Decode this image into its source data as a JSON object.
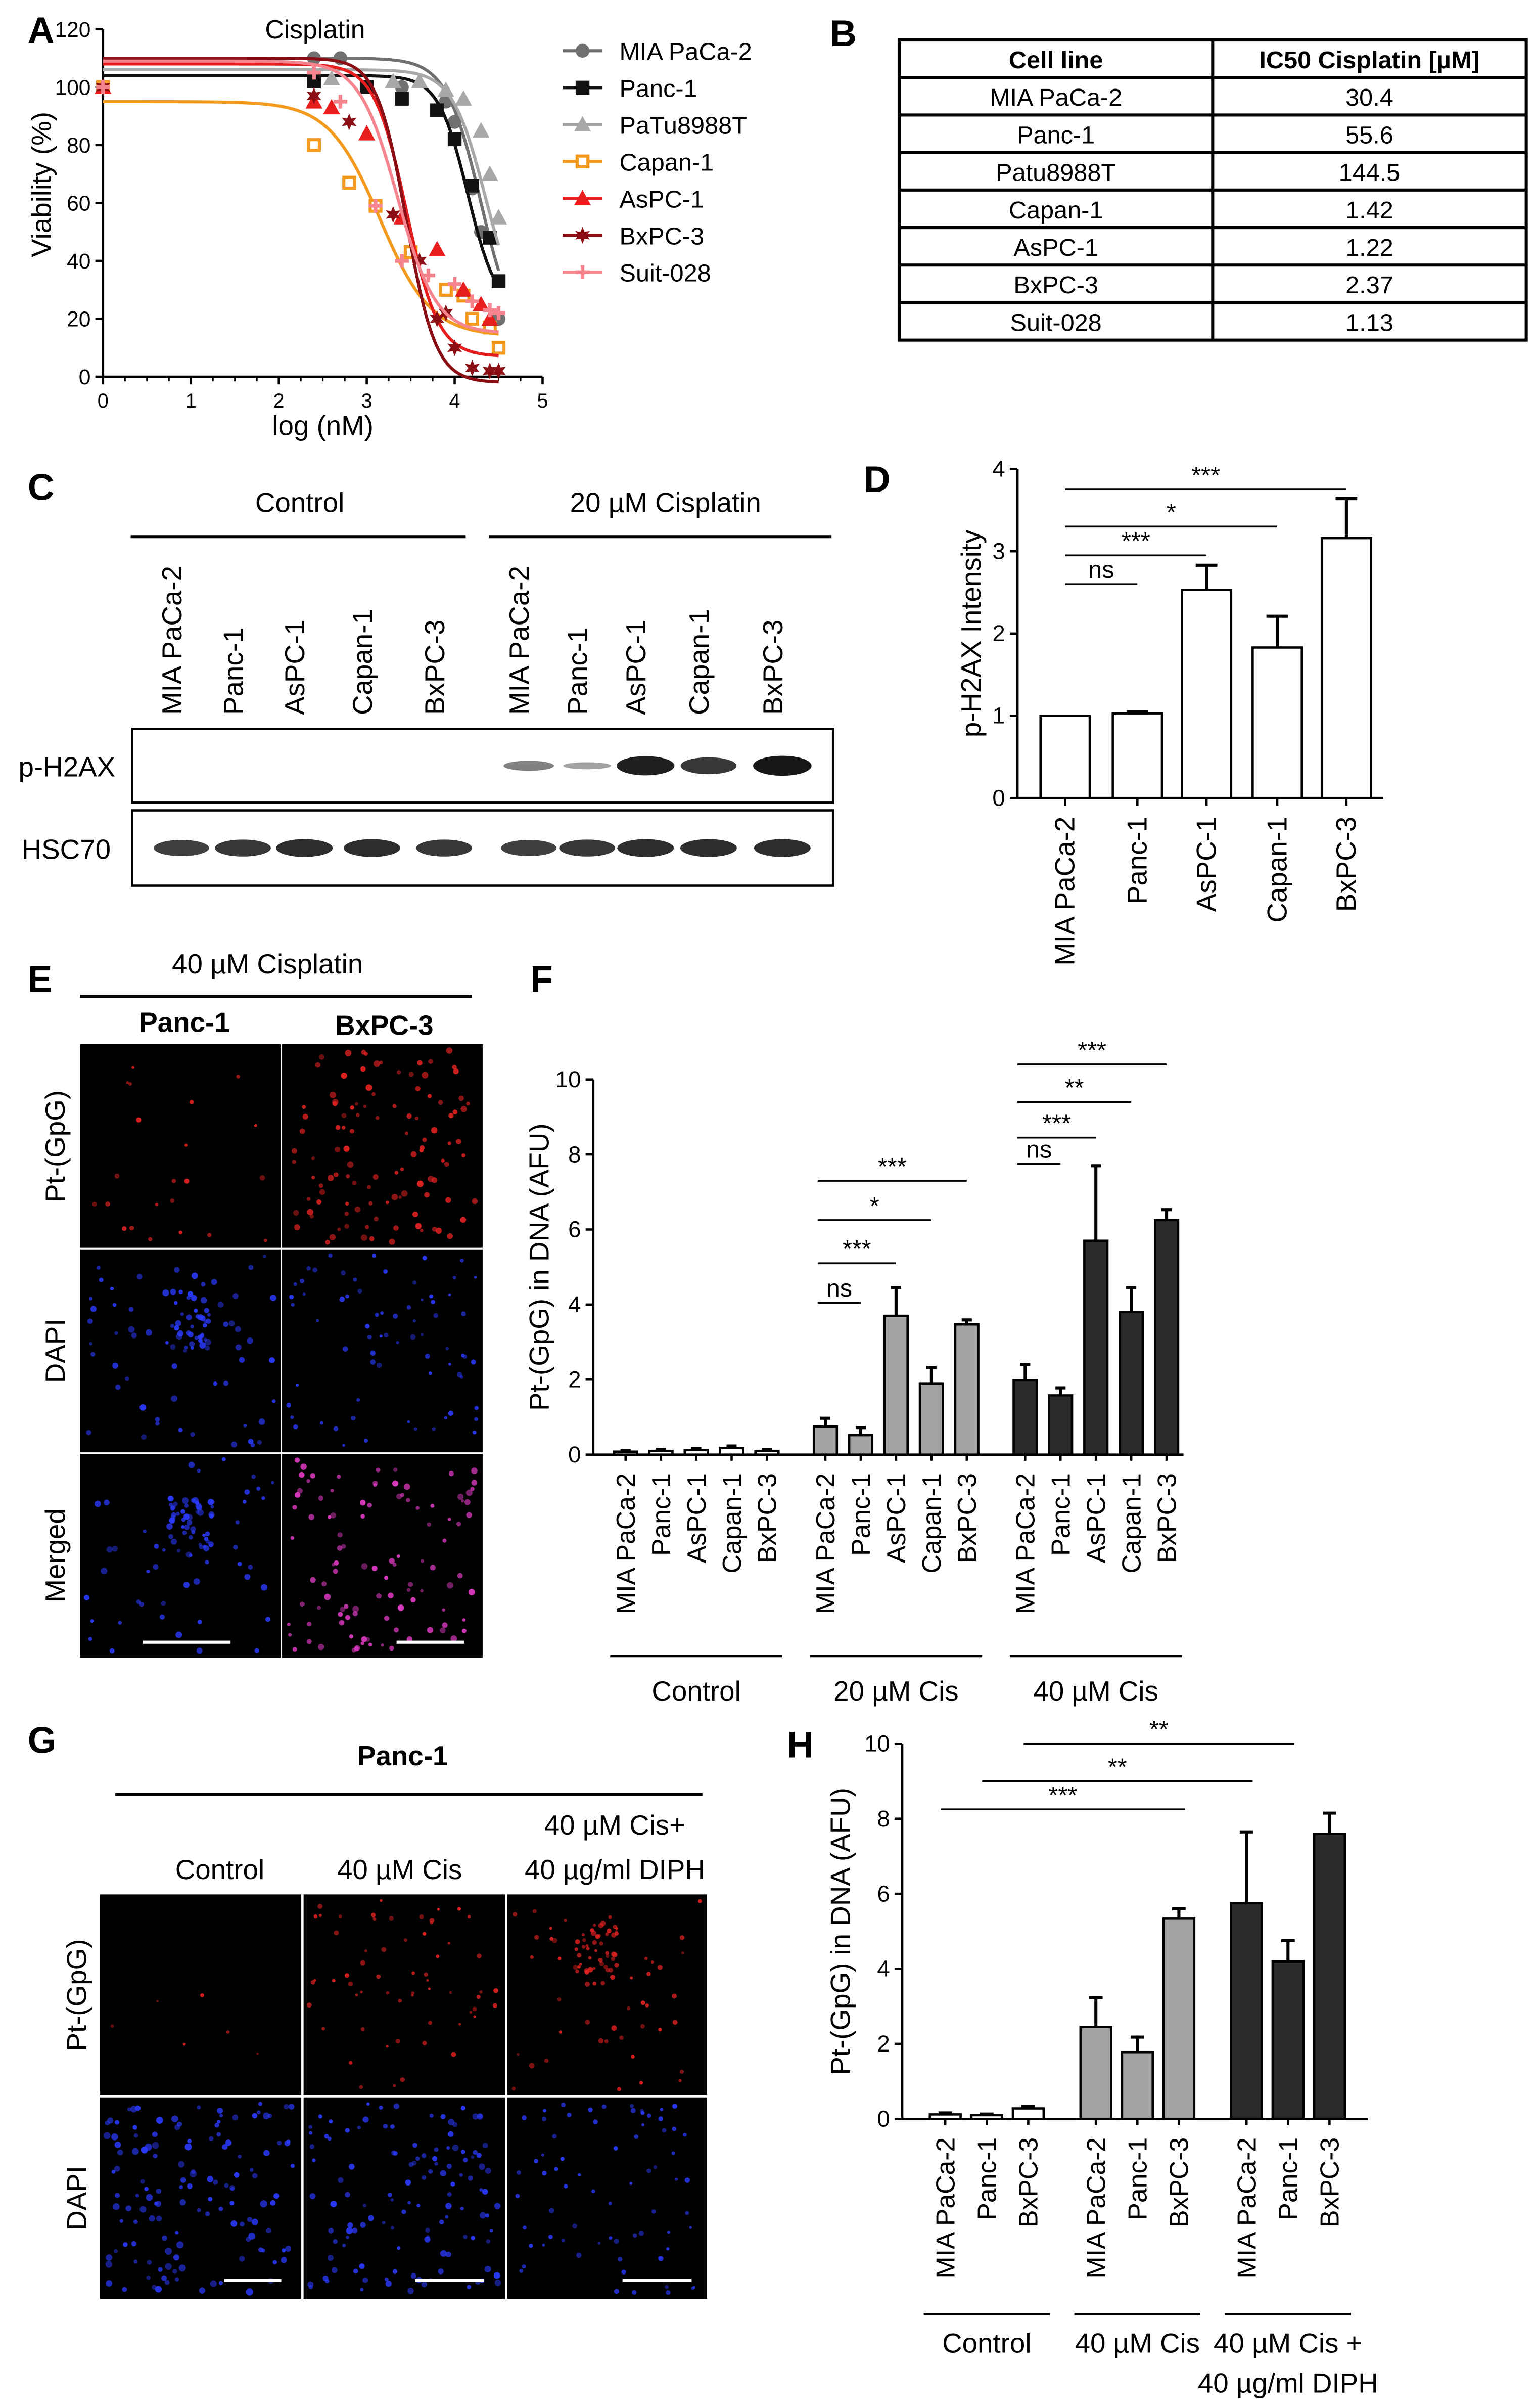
{
  "panel_labels": {
    "a": "A",
    "b": "B",
    "c": "C",
    "d": "D",
    "e": "E",
    "f": "F",
    "g": "G",
    "h": "H"
  },
  "chart_data": [
    {
      "id": "A",
      "type": "line",
      "title": "Cisplatin",
      "xlabel": "log (nM)",
      "ylabel": "Viability (%)",
      "xlim": [
        0,
        5
      ],
      "ylim": [
        0,
        120
      ],
      "xticks": [
        "0",
        "1",
        "2",
        "3",
        "4",
        "5"
      ],
      "yticks": [
        "0",
        "20",
        "40",
        "60",
        "80",
        "100",
        "120"
      ],
      "legend_position": "right",
      "series": [
        {
          "name": "MIA PaCa-2",
          "color": "#707070",
          "marker": "circle",
          "top": 110,
          "bottom": 10,
          "ec50_log": 4.3,
          "hill": 2.2,
          "points": [
            [
              0,
              100
            ],
            [
              2.4,
              110
            ],
            [
              2.7,
              110
            ],
            [
              3.4,
              100
            ],
            [
              3.9,
              95
            ],
            [
              4.0,
              88
            ],
            [
              4.2,
              65
            ],
            [
              4.3,
              50
            ],
            [
              4.5,
              20
            ]
          ]
        },
        {
          "name": "Panc-1",
          "color": "#111111",
          "marker": "square",
          "top": 104,
          "bottom": 22,
          "ec50_log": 4.15,
          "hill": 2.6,
          "points": [
            [
              0,
              100
            ],
            [
              2.4,
              102
            ],
            [
              3.0,
              100
            ],
            [
              3.4,
              96
            ],
            [
              3.8,
              92
            ],
            [
              4.0,
              82
            ],
            [
              4.2,
              66
            ],
            [
              4.4,
              48
            ],
            [
              4.5,
              33
            ]
          ]
        },
        {
          "name": "PaTu8988T",
          "color": "#a8a8a8",
          "marker": "triangle",
          "top": 106,
          "bottom": 18,
          "ec50_log": 4.35,
          "hill": 2.3,
          "points": [
            [
              0,
              100
            ],
            [
              2.6,
              103
            ],
            [
              3.3,
              102
            ],
            [
              3.6,
              102
            ],
            [
              3.9,
              99
            ],
            [
              4.1,
              96
            ],
            [
              4.3,
              85
            ],
            [
              4.4,
              70
            ],
            [
              4.5,
              55
            ]
          ]
        },
        {
          "name": "Capan-1",
          "color": "#f39a1e",
          "marker": "square-open",
          "top": 95,
          "bottom": 14,
          "ec50_log": 3.15,
          "hill": 1.5,
          "points": [
            [
              0,
              100
            ],
            [
              2.4,
              80
            ],
            [
              2.8,
              67
            ],
            [
              3.1,
              59
            ],
            [
              3.5,
              43
            ],
            [
              3.9,
              30
            ],
            [
              4.1,
              28
            ],
            [
              4.2,
              20
            ],
            [
              4.4,
              17
            ],
            [
              4.5,
              10
            ]
          ]
        },
        {
          "name": "AsPC-1",
          "color": "#e81e1e",
          "marker": "triangle",
          "top": 108,
          "bottom": 7,
          "ec50_log": 3.45,
          "hill": 2.4,
          "points": [
            [
              0,
              100
            ],
            [
              2.4,
              95
            ],
            [
              2.6,
              93
            ],
            [
              3.0,
              84
            ],
            [
              3.4,
              55
            ],
            [
              3.8,
              44
            ],
            [
              4.1,
              30
            ],
            [
              4.3,
              25
            ],
            [
              4.4,
              20
            ]
          ]
        },
        {
          "name": "BxPC-3",
          "color": "#8a0e14",
          "marker": "star",
          "top": 110,
          "bottom": -2,
          "ec50_log": 3.45,
          "hill": 2.6,
          "points": [
            [
              0,
              100
            ],
            [
              2.4,
              97
            ],
            [
              2.8,
              88
            ],
            [
              3.3,
              56
            ],
            [
              3.6,
              40
            ],
            [
              3.8,
              20
            ],
            [
              3.9,
              22
            ],
            [
              4.0,
              10
            ],
            [
              4.2,
              3
            ],
            [
              4.4,
              2
            ],
            [
              4.5,
              2
            ]
          ]
        },
        {
          "name": "Suit-028",
          "color": "#f5848e",
          "marker": "plus",
          "top": 109,
          "bottom": 15,
          "ec50_log": 3.35,
          "hill": 2.0,
          "points": [
            [
              0,
              100
            ],
            [
              2.4,
              105
            ],
            [
              2.7,
              95
            ],
            [
              3.1,
              59
            ],
            [
              3.4,
              40
            ],
            [
              3.7,
              35
            ],
            [
              4.0,
              32
            ],
            [
              4.2,
              26
            ],
            [
              4.4,
              23
            ],
            [
              4.5,
              22
            ]
          ]
        }
      ]
    },
    {
      "id": "B",
      "type": "table",
      "columns": [
        "Cell line",
        "IC50 Cisplatin [µM]"
      ],
      "rows": [
        [
          "MIA PaCa-2",
          "30.4"
        ],
        [
          "Panc-1",
          "55.6"
        ],
        [
          "Patu8988T",
          "144.5"
        ],
        [
          "Capan-1",
          "1.42"
        ],
        [
          "AsPC-1",
          "1.22"
        ],
        [
          "BxPC-3",
          "2.37"
        ],
        [
          "Suit-028",
          "1.13"
        ]
      ]
    },
    {
      "id": "D",
      "type": "bar",
      "ylabel": "p-H2AX Intensity",
      "ylim": [
        0,
        4
      ],
      "yticks": [
        "0",
        "1",
        "2",
        "3",
        "4"
      ],
      "categories": [
        "MIA PaCa-2",
        "Panc-1",
        "AsPC-1",
        "Capan-1",
        "BxPC-3"
      ],
      "values": [
        1.0,
        1.03,
        2.53,
        1.83,
        3.16
      ],
      "errors": [
        0,
        0.02,
        0.3,
        0.38,
        0.48
      ],
      "fill": "#ffffff",
      "significance": [
        {
          "from": 0,
          "to": 1,
          "label": "ns",
          "y": 2.6
        },
        {
          "from": 0,
          "to": 2,
          "label": "***",
          "y": 2.95
        },
        {
          "from": 0,
          "to": 3,
          "label": "*",
          "y": 3.3
        },
        {
          "from": 0,
          "to": 4,
          "label": "***",
          "y": 3.75
        }
      ]
    },
    {
      "id": "F",
      "type": "bar",
      "ylabel": "Pt-(GpG) in DNA (AFU)",
      "ylim": [
        0,
        10
      ],
      "yticks": [
        "0",
        "2",
        "4",
        "6",
        "8",
        "10"
      ],
      "categories": [
        "MIA PaCa-2",
        "Panc-1",
        "AsPC-1",
        "Capan-1",
        "BxPC-3"
      ],
      "groups": [
        {
          "name": "Control",
          "fill": "#ffffff",
          "values": [
            0.08,
            0.1,
            0.12,
            0.18,
            0.1
          ],
          "errors": [
            0.03,
            0.04,
            0.04,
            0.05,
            0.03
          ]
        },
        {
          "name": "20 µM Cis",
          "fill": "#a3a3a3",
          "values": [
            0.75,
            0.52,
            3.7,
            1.9,
            3.47
          ],
          "errors": [
            0.22,
            0.2,
            0.75,
            0.42,
            0.12
          ]
        },
        {
          "name": "40 µM Cis",
          "fill": "#2b2b2b",
          "values": [
            1.98,
            1.58,
            5.7,
            3.8,
            6.25
          ],
          "errors": [
            0.42,
            0.2,
            2.0,
            0.65,
            0.28
          ]
        }
      ],
      "significance": [
        {
          "group": 1,
          "from": 0,
          "to": 1,
          "label": "ns",
          "y": 4.05
        },
        {
          "group": 1,
          "from": 0,
          "to": 2,
          "label": "***",
          "y": 5.1
        },
        {
          "group": 1,
          "from": 0,
          "to": 3,
          "label": "*",
          "y": 6.25
        },
        {
          "group": 1,
          "from": 0,
          "to": 4,
          "label": "***",
          "y": 7.3
        },
        {
          "group": 2,
          "from": 0,
          "to": 1,
          "label": "ns",
          "y": 7.75
        },
        {
          "group": 2,
          "from": 0,
          "to": 2,
          "label": "***",
          "y": 8.45
        },
        {
          "group": 2,
          "from": 0,
          "to": 3,
          "label": "**",
          "y": 9.4
        },
        {
          "group": 2,
          "from": 0,
          "to": 4,
          "label": "***",
          "y": 10.4
        }
      ]
    },
    {
      "id": "H",
      "type": "bar",
      "ylabel": "Pt-(GpG) in DNA (AFU)",
      "ylim": [
        0,
        10
      ],
      "yticks": [
        "0",
        "2",
        "4",
        "6",
        "8",
        "10"
      ],
      "categories": [
        "MIA PaCa-2",
        "Panc-1",
        "BxPC-3"
      ],
      "groups": [
        {
          "name": "Control",
          "fill": "#ffffff",
          "values": [
            0.12,
            0.1,
            0.28
          ],
          "errors": [
            0.04,
            0.03,
            0.05
          ]
        },
        {
          "name": "40 µM Cis",
          "fill": "#a3a3a3",
          "values": [
            2.45,
            1.78,
            5.35
          ],
          "errors": [
            0.78,
            0.4,
            0.25
          ]
        },
        {
          "name": "40 µM Cis +\n40 µg/ml DIPH",
          "fill": "#2b2b2b",
          "values": [
            5.75,
            4.2,
            7.6
          ],
          "errors": [
            1.9,
            0.55,
            0.55
          ]
        }
      ],
      "significance": [
        {
          "from_bar": 3,
          "to_bar": 6,
          "label": "***",
          "y": 8.25
        },
        {
          "from_bar": 4,
          "to_bar": 7,
          "label": "**",
          "y": 9.0
        },
        {
          "from_bar": 5,
          "to_bar": 8,
          "label": "**",
          "y": 10.0
        }
      ]
    }
  ],
  "panel_c": {
    "group_labels": [
      "Control",
      "20 µM Cisplatin"
    ],
    "lanes": [
      "MIA PaCa-2",
      "Panc-1",
      "AsPC-1",
      "Capan-1",
      "BxPC-3",
      "MIA PaCa-2",
      "Panc-1",
      "AsPC-1",
      "Capan-1",
      "BxPC-3"
    ],
    "rows": [
      {
        "label": "p-H2AX",
        "intensity": [
          0,
          0,
          0,
          0,
          0,
          0.35,
          0.15,
          0.95,
          0.8,
          1.0
        ]
      },
      {
        "label": "HSC70",
        "intensity": [
          0.75,
          0.8,
          0.85,
          0.85,
          0.8,
          0.75,
          0.8,
          0.85,
          0.85,
          0.85
        ]
      }
    ]
  },
  "panel_e": {
    "title": "40 µM Cisplatin",
    "columns": [
      "Panc-1",
      "BxPC-3"
    ],
    "rows": [
      "Pt-(GpG)",
      "DAPI",
      "Merged"
    ]
  },
  "panel_g": {
    "title": "Panc-1",
    "columns": [
      "Control",
      "40 µM Cis",
      "40 µM Cis+\n40 µg/ml DIPH"
    ],
    "rows": [
      "Pt-(GpG)",
      "DAPI"
    ]
  },
  "colors": {
    "red_stain": "#e52222",
    "blue_stain": "#2b3bff",
    "magenta_stain": "#e43cc8",
    "band": "#161616"
  }
}
